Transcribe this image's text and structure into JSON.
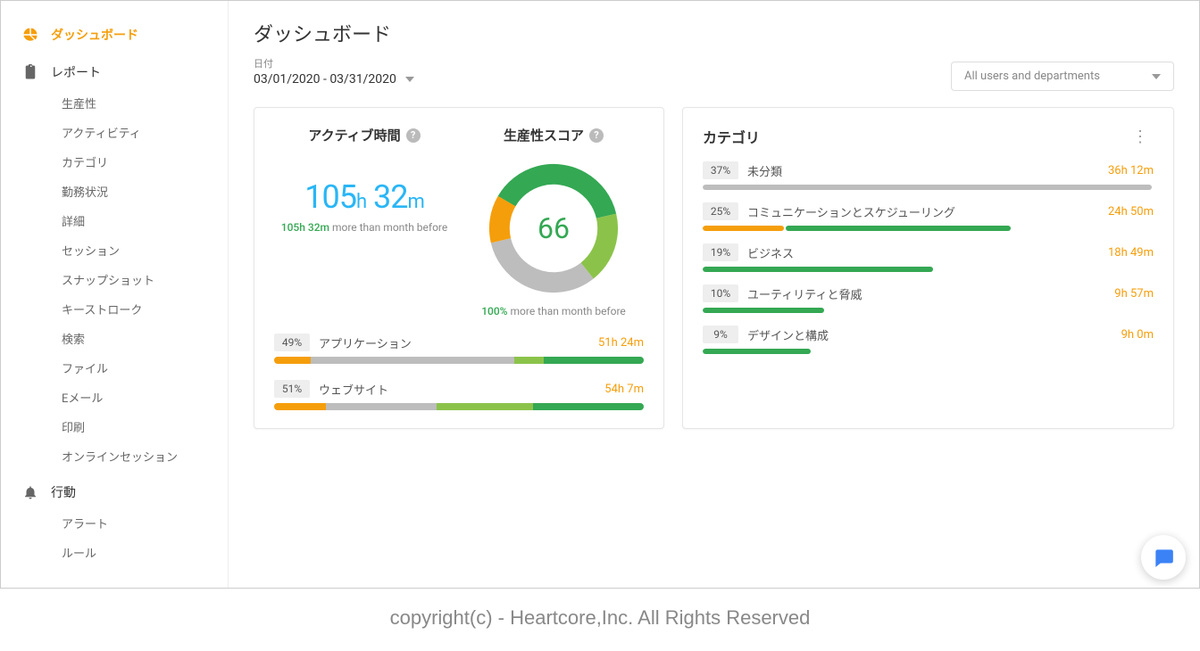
{
  "colors": {
    "accent": "#f59e0b",
    "green_dark": "#34a853",
    "green_light": "#8bc34a",
    "gray_bar": "#bdbdbd",
    "blue": "#29b6f6",
    "chat_icon": "#3b82f6"
  },
  "sidebar": {
    "dashboard": {
      "label": "ダッシュボード"
    },
    "reports": {
      "label": "レポート",
      "items": [
        "生産性",
        "アクティビティ",
        "カテゴリ",
        "勤務状況",
        "詳細",
        "セッション",
        "スナップショット",
        "キーストローク",
        "検索",
        "ファイル",
        "Eメール",
        "印刷",
        "オンラインセッション"
      ]
    },
    "behavior": {
      "label": "行動",
      "items": [
        "アラート",
        "ルール"
      ]
    }
  },
  "header": {
    "title": "ダッシュボード",
    "date_label": "日付",
    "date_range": "03/01/2020 - 03/31/2020",
    "filter_placeholder": "All users and departments"
  },
  "active_time": {
    "title": "アクティブ時間",
    "hours": "105",
    "h_unit": "h",
    "minutes": "32",
    "m_unit": "m",
    "compare_value": "105h 32m",
    "compare_text": " more than month before"
  },
  "score": {
    "title": "生産性スコア",
    "value": "66",
    "donut_segments": [
      {
        "color": "#34a853",
        "pct": 38
      },
      {
        "color": "#8bc34a",
        "pct": 18
      },
      {
        "color": "#bdbdbd",
        "pct": 32
      },
      {
        "color": "#f59e0b",
        "pct": 12
      }
    ],
    "compare_value": "100%",
    "compare_text": " more than month before"
  },
  "breakdown": [
    {
      "pct": "49%",
      "label": "アプリケーション",
      "time": "51h 24m",
      "segments": [
        {
          "color": "#f59e0b",
          "pct": 10
        },
        {
          "color": "#bdbdbd",
          "pct": 55
        },
        {
          "color": "#8bc34a",
          "pct": 8
        },
        {
          "color": "#34a853",
          "pct": 27
        }
      ]
    },
    {
      "pct": "51%",
      "label": "ウェブサイト",
      "time": "54h 7m",
      "segments": [
        {
          "color": "#f59e0b",
          "pct": 14
        },
        {
          "color": "#bdbdbd",
          "pct": 30
        },
        {
          "color": "#8bc34a",
          "pct": 26
        },
        {
          "color": "#34a853",
          "pct": 30
        }
      ]
    }
  ],
  "categories": {
    "title": "カテゴリ",
    "rows": [
      {
        "pct": "37%",
        "label": "未分類",
        "time": "36h 12m",
        "segments": [
          {
            "color": "#bdbdbd",
            "pct": 100
          }
        ]
      },
      {
        "pct": "25%",
        "label": "コミュニケーションとスケジューリング",
        "time": "24h 50m",
        "segments": [
          {
            "color": "#f59e0b",
            "pct": 18
          },
          {
            "color": "#34a853",
            "pct": 50
          }
        ]
      },
      {
        "pct": "19%",
        "label": "ビジネス",
        "time": "18h 49m",
        "segments": [
          {
            "color": "#34a853",
            "pct": 51
          }
        ]
      },
      {
        "pct": "10%",
        "label": "ユーティリティと脅威",
        "time": "9h 57m",
        "segments": [
          {
            "color": "#34a853",
            "pct": 27
          }
        ]
      },
      {
        "pct": "9%",
        "label": "デザインと構成",
        "time": "9h 0m",
        "segments": [
          {
            "color": "#34a853",
            "pct": 24
          }
        ]
      }
    ]
  },
  "footer": {
    "copyright": "copyright(c)  - Heartcore,Inc. All Rights Reserved"
  }
}
